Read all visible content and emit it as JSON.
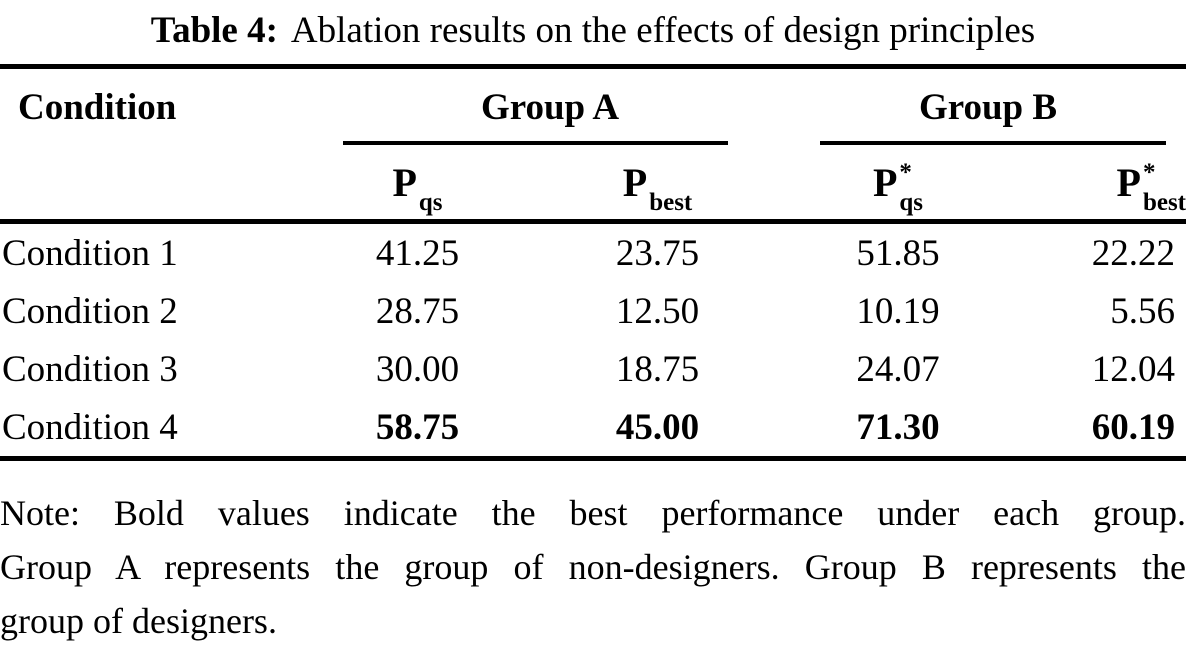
{
  "caption": {
    "label": "Table 4:",
    "text": "Ablation results on the effects of design principles"
  },
  "table": {
    "stub_header": "Condition",
    "groups": [
      {
        "label": "Group A"
      },
      {
        "label": "Group B"
      }
    ],
    "col_headers": [
      {
        "base": "P",
        "sup": "",
        "sub": "qs"
      },
      {
        "base": "P",
        "sup": "",
        "sub": "best"
      },
      {
        "base": "P",
        "sup": "*",
        "sub": "qs"
      },
      {
        "base": "P",
        "sup": "*",
        "sub": "best"
      }
    ],
    "rows": [
      {
        "label": "Condition 1",
        "values": [
          "41.25",
          "23.75",
          "51.85",
          "22.22"
        ],
        "bold": false
      },
      {
        "label": "Condition 2",
        "values": [
          "28.75",
          "12.50",
          "10.19",
          "5.56"
        ],
        "bold": false
      },
      {
        "label": "Condition 3",
        "values": [
          "30.00",
          "18.75",
          "24.07",
          "12.04"
        ],
        "bold": false
      },
      {
        "label": "Condition 4",
        "values": [
          "58.75",
          "45.00",
          "71.30",
          "60.19"
        ],
        "bold": true
      }
    ]
  },
  "note": {
    "lines": [
      "Note: Bold values indicate the best performance under each group.",
      "Group A represents the group of non-designers. Group B represents the",
      "group of designers."
    ]
  },
  "colors": {
    "text": "#000000",
    "background": "#ffffff",
    "rule": "#000000"
  }
}
